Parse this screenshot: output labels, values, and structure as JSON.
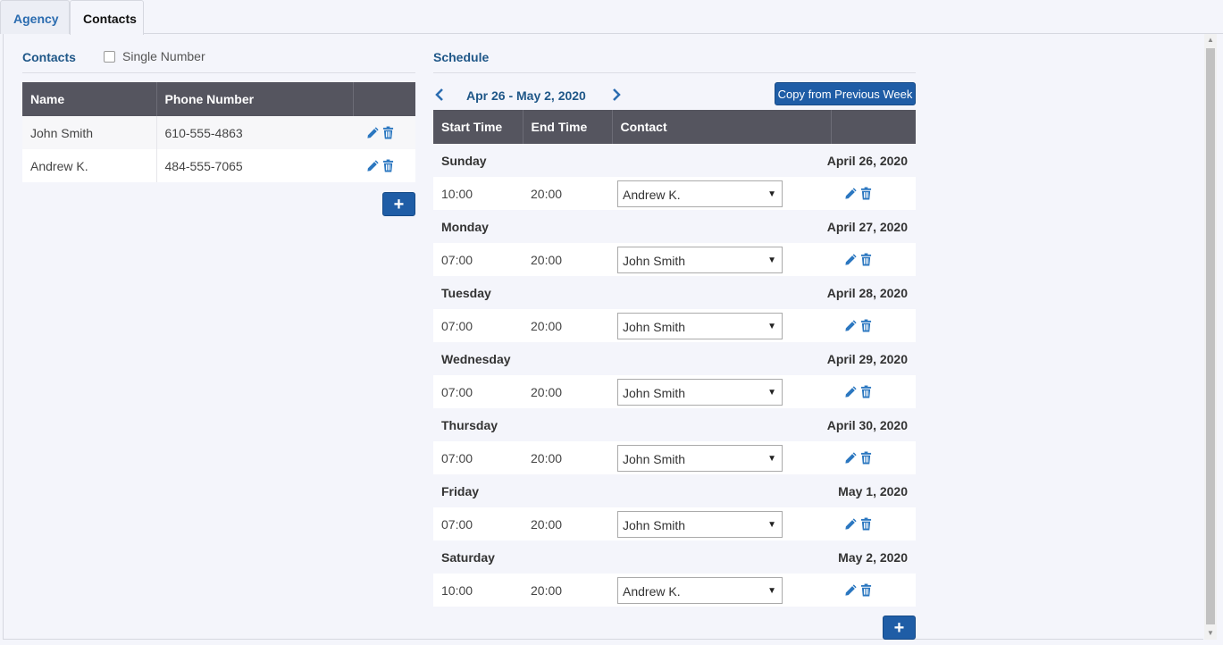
{
  "tabs": [
    {
      "label": "Agency",
      "active": false
    },
    {
      "label": "Contacts",
      "active": true
    }
  ],
  "contacts": {
    "title": "Contacts",
    "single_number_label": "Single Number",
    "single_number_checked": false,
    "columns": [
      "Name",
      "Phone Number",
      ""
    ],
    "rows": [
      {
        "name": "John Smith",
        "phone": "610-555-4863"
      },
      {
        "name": "Andrew K.",
        "phone": "484-555-7065"
      }
    ],
    "add_label": "+"
  },
  "schedule": {
    "title": "Schedule",
    "week_label": "Apr 26 - May 2, 2020",
    "prev_icon": "chevron-left-icon",
    "next_icon": "chevron-right-icon",
    "copy_label": "Copy from Previous Week",
    "columns": [
      "Start Time",
      "End Time",
      "Contact",
      ""
    ],
    "days": [
      {
        "day": "Sunday",
        "date": "April 26, 2020",
        "start": "10:00",
        "end": "20:00",
        "contact": "Andrew K."
      },
      {
        "day": "Monday",
        "date": "April 27, 2020",
        "start": "07:00",
        "end": "20:00",
        "contact": "John Smith"
      },
      {
        "day": "Tuesday",
        "date": "April 28, 2020",
        "start": "07:00",
        "end": "20:00",
        "contact": "John Smith"
      },
      {
        "day": "Wednesday",
        "date": "April 29, 2020",
        "start": "07:00",
        "end": "20:00",
        "contact": "John Smith"
      },
      {
        "day": "Thursday",
        "date": "April 30, 2020",
        "start": "07:00",
        "end": "20:00",
        "contact": "John Smith"
      },
      {
        "day": "Friday",
        "date": "May 1, 2020",
        "start": "07:00",
        "end": "20:00",
        "contact": "John Smith"
      },
      {
        "day": "Saturday",
        "date": "May 2, 2020",
        "start": "10:00",
        "end": "20:00",
        "contact": "Andrew K."
      }
    ],
    "add_label": "+"
  },
  "colors": {
    "accent": "#1f5da6",
    "header_bg": "#55555f",
    "title": "#1f5788",
    "icon": "#2b77c0"
  }
}
